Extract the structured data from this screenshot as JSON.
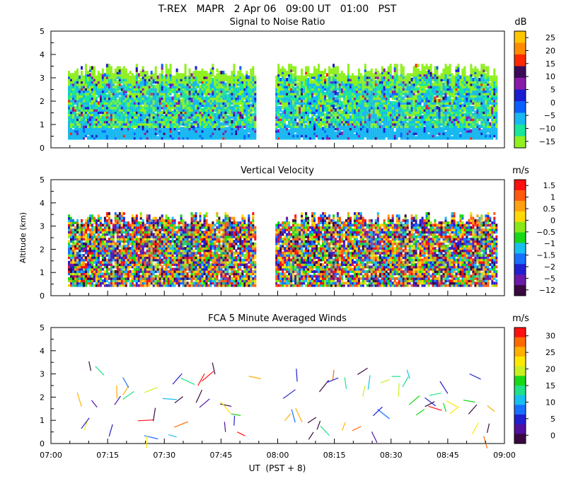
{
  "chart_data": {
    "type": "heatmap",
    "title": "T-REX   MAPR   2 Apr 06   09:00 UT   01:00   PST",
    "xlabel": "UT  (PST + 8)",
    "ylabel": "Altitude (km)",
    "x_tick_labels": [
      "07:00",
      "07:15",
      "07:30",
      "07:45",
      "08:00",
      "08:15",
      "08:30",
      "08:45",
      "09:00"
    ],
    "x_range_minutes": [
      0,
      120
    ],
    "data_gap_minutes": [
      54,
      59
    ],
    "panels": [
      {
        "title": "Signal to Noise Ratio",
        "unit": "dB",
        "ylim": [
          0,
          5
        ],
        "y_ticks": [
          "0",
          "1",
          "2",
          "3",
          "4",
          "5"
        ],
        "colorbar_labels": [
          "25",
          "20",
          "15",
          "10",
          "5",
          "0",
          "−5",
          "−10",
          "−15"
        ],
        "colors": [
          "#ffc400",
          "#ff8c00",
          "#ff2800",
          "#3c0a5a",
          "#8a1aa8",
          "#1c1cd0",
          "#0a60ff",
          "#18b8f0",
          "#18e69a",
          "#90f020"
        ]
      },
      {
        "title": "Vertical Velocity",
        "unit": "m/s",
        "ylim": [
          0,
          5
        ],
        "y_ticks": [
          "0",
          "1",
          "2",
          "3",
          "4",
          "5"
        ],
        "colorbar_labels": [
          "1.5",
          "1",
          "0.5",
          "0",
          "−0.5",
          "−1",
          "−1.5",
          "−2",
          "−5",
          "−12"
        ],
        "colors": [
          "#ff1010",
          "#ff5a10",
          "#ffa010",
          "#ffd80a",
          "#88e818",
          "#18d818",
          "#18c0f0",
          "#1870ff",
          "#2020d0",
          "#6a1aa8",
          "#3a0840"
        ]
      },
      {
        "title": "FCA 5 Minute Averaged Winds",
        "unit": "m/s",
        "ylim": [
          0,
          5
        ],
        "y_ticks": [
          "0",
          "1",
          "2",
          "3",
          "4",
          "5"
        ],
        "colorbar_labels": [
          "30",
          "25",
          "20",
          "15",
          "10",
          "5",
          "0"
        ],
        "colors": [
          "#ff1010",
          "#ff6a00",
          "#ffb000",
          "#ffe800",
          "#c8f020",
          "#18d818",
          "#20e08a",
          "#18c0f0",
          "#1870ff",
          "#2020d0",
          "#5010a0",
          "#3a0840"
        ]
      }
    ]
  }
}
